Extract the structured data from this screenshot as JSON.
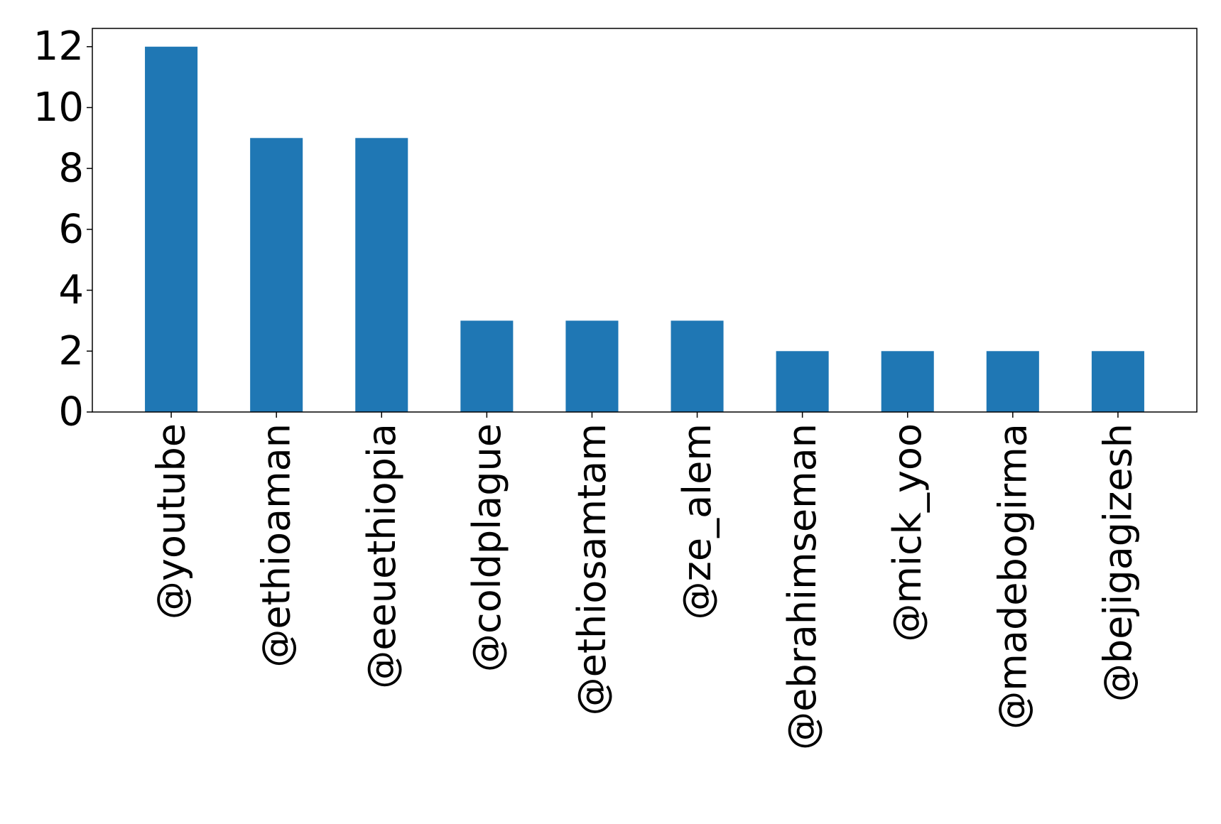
{
  "chart_data": {
    "type": "bar",
    "title": "",
    "xlabel": "",
    "ylabel": "",
    "categories": [
      "@youtube",
      "@ethioaman",
      "@eeuethiopia",
      "@coldplague",
      "@ethiosamtam",
      "@ze_alem",
      "@ebrahimseman",
      "@mick_yoo",
      "@madebogirma",
      "@bejigagizesh"
    ],
    "values": [
      12,
      9,
      9,
      3,
      3,
      3,
      2,
      2,
      2,
      2
    ],
    "ylim": [
      0,
      12.6
    ],
    "yticks": [
      0,
      2,
      4,
      6,
      8,
      10,
      12
    ],
    "grid": false,
    "legend": "none",
    "bar_color": "#1f77b4",
    "axis_color": "#000000"
  }
}
